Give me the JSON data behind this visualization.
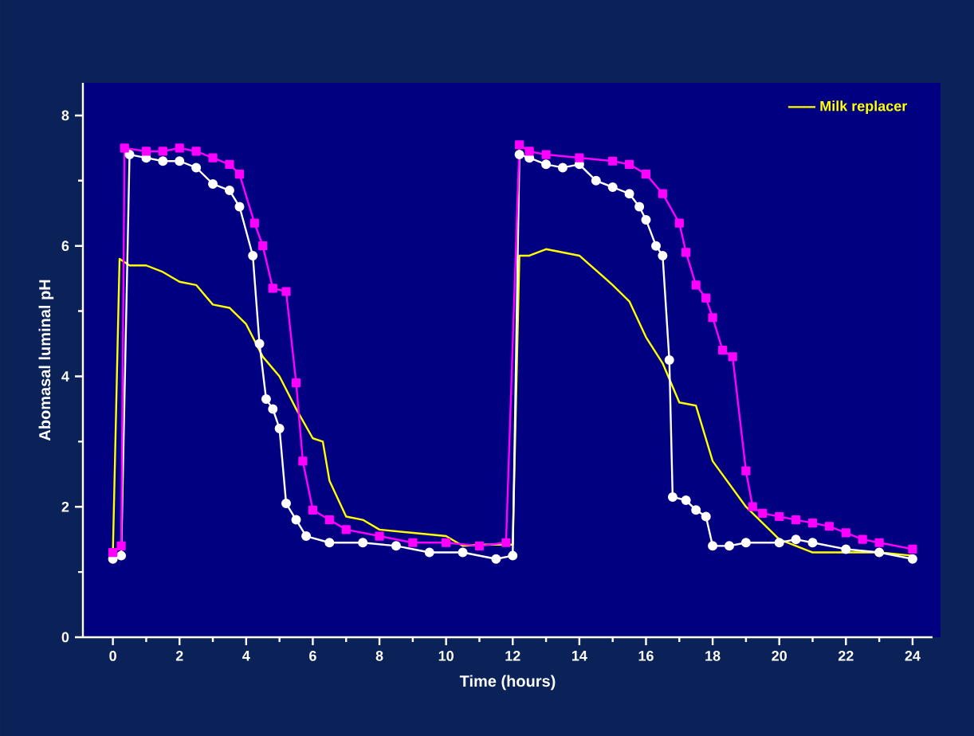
{
  "chart_data": {
    "type": "line",
    "xlabel": "Time (hours)",
    "ylabel": "Abomasal luminal pH",
    "xlim": [
      -0.9,
      24.6
    ],
    "xticks": [
      0,
      2,
      4,
      6,
      8,
      10,
      12,
      14,
      16,
      18,
      20,
      22,
      24
    ],
    "ylim": [
      0,
      8.5
    ],
    "yticks": [
      0,
      2,
      4,
      6,
      8
    ],
    "legend": "top right",
    "grid": false,
    "line_style": "solid",
    "series": [
      {
        "name": "Milk replacer",
        "color": "#ffff00",
        "marker": "none",
        "x": [
          0,
          0.2,
          0.5,
          1,
          1.5,
          2,
          2.5,
          3,
          3.5,
          4,
          4.5,
          5,
          5.5,
          6,
          6.3,
          6.5,
          7,
          7.5,
          8,
          9,
          10,
          10.5,
          11,
          12,
          12.2,
          12.5,
          13,
          14,
          15,
          15.5,
          16,
          16.5,
          17,
          17.5,
          18,
          19,
          20,
          20.5,
          21,
          22,
          23,
          24
        ],
        "values": [
          1.3,
          5.8,
          5.7,
          5.7,
          5.6,
          5.45,
          5.4,
          5.1,
          5.05,
          4.8,
          4.3,
          4.0,
          3.5,
          3.05,
          3.0,
          2.4,
          1.85,
          1.8,
          1.65,
          1.6,
          1.55,
          1.4,
          1.42,
          1.42,
          5.85,
          5.85,
          5.95,
          5.85,
          5.4,
          5.15,
          4.6,
          4.2,
          3.6,
          3.55,
          2.7,
          2.0,
          1.5,
          1.4,
          1.3,
          1.3,
          1.3,
          1.25
        ]
      },
      {
        "color": "#ffffff",
        "marker": "circle",
        "x": [
          0,
          0.25,
          0.5,
          1,
          1.5,
          2,
          2.5,
          3,
          3.5,
          3.8,
          4.2,
          4.4,
          4.6,
          4.8,
          5,
          5.2,
          5.5,
          5.8,
          6.5,
          7.5,
          8.5,
          9.5,
          10.5,
          11.5,
          12,
          12.2,
          12.5,
          13,
          13.5,
          14,
          14.5,
          15,
          15.5,
          15.8,
          16,
          16.3,
          16.5,
          16.7,
          16.8,
          17.2,
          17.5,
          17.8,
          18,
          18.5,
          19,
          20,
          20.5,
          21,
          22,
          23,
          24
        ],
        "values": [
          1.2,
          1.25,
          7.4,
          7.35,
          7.3,
          7.3,
          7.2,
          6.95,
          6.85,
          6.6,
          5.85,
          4.5,
          3.65,
          3.5,
          3.2,
          2.05,
          1.8,
          1.55,
          1.45,
          1.45,
          1.4,
          1.3,
          1.3,
          1.2,
          1.25,
          7.4,
          7.35,
          7.25,
          7.2,
          7.25,
          7.0,
          6.9,
          6.8,
          6.6,
          6.4,
          6.0,
          5.85,
          4.25,
          2.15,
          2.1,
          1.95,
          1.85,
          1.4,
          1.4,
          1.45,
          1.45,
          1.5,
          1.45,
          1.35,
          1.3,
          1.2
        ]
      },
      {
        "color": "#ff00ff",
        "marker": "square",
        "x": [
          0,
          0.25,
          0.35,
          1,
          1.5,
          2,
          2.5,
          3,
          3.5,
          3.8,
          4.25,
          4.5,
          4.8,
          5.2,
          5.5,
          5.7,
          6,
          6.5,
          7,
          8,
          9,
          10,
          11,
          11.8,
          12.2,
          12.5,
          13,
          14,
          15,
          15.5,
          16,
          16.5,
          17,
          17.2,
          17.5,
          17.8,
          18,
          18.3,
          18.6,
          19,
          19.2,
          19.5,
          20,
          20.5,
          21,
          21.5,
          22,
          22.5,
          23,
          24
        ],
        "values": [
          1.3,
          1.4,
          7.5,
          7.45,
          7.45,
          7.5,
          7.45,
          7.35,
          7.25,
          7.1,
          6.35,
          6.0,
          5.35,
          5.3,
          3.9,
          2.7,
          1.95,
          1.8,
          1.65,
          1.55,
          1.45,
          1.45,
          1.4,
          1.45,
          7.55,
          7.45,
          7.4,
          7.35,
          7.3,
          7.25,
          7.1,
          6.8,
          6.35,
          5.9,
          5.4,
          5.2,
          4.9,
          4.4,
          4.3,
          2.55,
          2.0,
          1.9,
          1.85,
          1.8,
          1.75,
          1.7,
          1.6,
          1.5,
          1.45,
          1.35
        ]
      }
    ]
  }
}
